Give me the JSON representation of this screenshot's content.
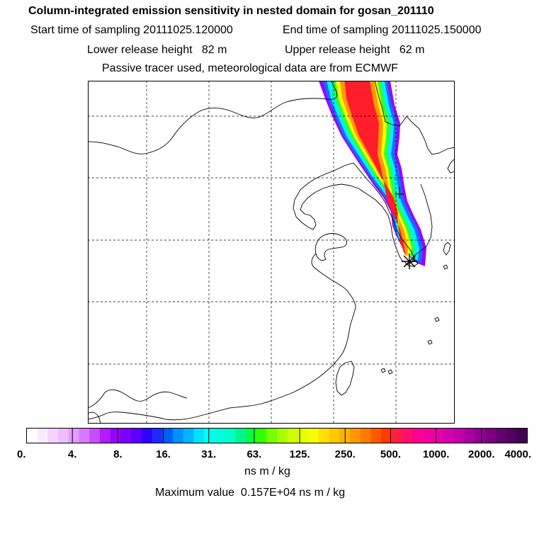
{
  "header": {
    "title": "Column-integrated emission sensitivity in nested domain for gosan_201110",
    "start_time": "Start time of sampling 20111025.120000",
    "end_time": "End time of sampling 20111025.150000",
    "lower_release": "Lower release height   82 m",
    "upper_release": "Upper release height   62 m",
    "tracer_note": "Passive tracer used, meteorological data are from ECMWF"
  },
  "map": {
    "grid_lines": "dashed",
    "release_site": "gosan"
  },
  "colorbar": {
    "tick_labels": [
      "0.",
      "4.",
      "8.",
      "16.",
      "31.",
      "63.",
      "125.",
      "250.",
      "500.",
      "1000.",
      "2000.",
      "4000."
    ],
    "colors": [
      "#ffffff",
      "#fbeaff",
      "#f5d3ff",
      "#efbcff",
      "#e39bff",
      "#d878ff",
      "#c64dff",
      "#b21cff",
      "#9b00ff",
      "#7d00ff",
      "#5a00ff",
      "#2f00ff",
      "#1c2cff",
      "#0060ff",
      "#0090ff",
      "#00b4ff",
      "#00e0ff",
      "#00ffee",
      "#00ffdd",
      "#00ffcc",
      "#00f58c",
      "#00ff44",
      "#33ff00",
      "#77ff00",
      "#a8ff00",
      "#ccff00",
      "#e6ff00",
      "#f8ff00",
      "#ffe000",
      "#ffc800",
      "#ffb000",
      "#ff9800",
      "#ff7c00",
      "#ff5a00",
      "#ff3a00",
      "#ff2040",
      "#ff1070",
      "#ff0090",
      "#f000a0",
      "#e400a8",
      "#d200ac",
      "#c000a8",
      "#a800a0",
      "#900090",
      "#7a0080",
      "#640070",
      "#52005e",
      "#420050"
    ],
    "units": "ns m / kg"
  },
  "footer": {
    "max_value": "Maximum value  0.157E+04 ns m / kg"
  }
}
